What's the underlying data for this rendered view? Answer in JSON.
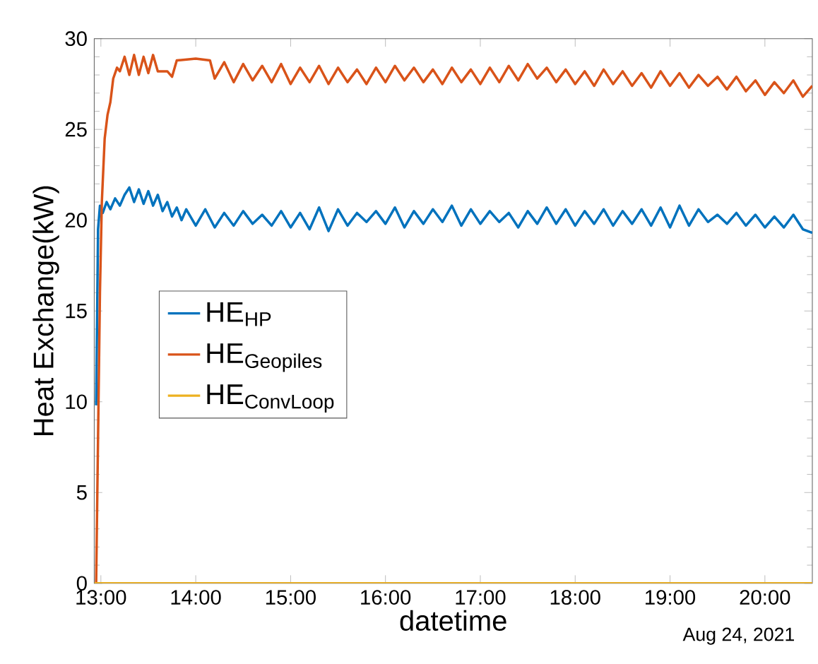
{
  "chart_data": {
    "type": "line",
    "xlabel": "datetime",
    "ylabel": "Heat Exchange(kW)",
    "xlim": [
      12.93,
      20.5
    ],
    "ylim": [
      0,
      30
    ],
    "xticks": [
      {
        "value": 13,
        "label": "13:00"
      },
      {
        "value": 14,
        "label": "14:00"
      },
      {
        "value": 15,
        "label": "15:00"
      },
      {
        "value": 16,
        "label": "16:00"
      },
      {
        "value": 17,
        "label": "17:00"
      },
      {
        "value": 18,
        "label": "18:00"
      },
      {
        "value": 19,
        "label": "19:00"
      },
      {
        "value": 20,
        "label": "20:00"
      }
    ],
    "yticks": [
      0,
      5,
      10,
      15,
      20,
      25,
      30
    ],
    "grid": false,
    "legend": "left",
    "marker": "none",
    "line_style": "solid",
    "annotations": [
      "Aug 24, 2021"
    ],
    "series": [
      {
        "name": "HE$_{HP}$",
        "color": "#0072bd",
        "x": [
          12.95,
          12.97,
          12.99,
          13.02,
          13.06,
          13.1,
          13.15,
          13.2,
          13.25,
          13.3,
          13.35,
          13.4,
          13.45,
          13.5,
          13.55,
          13.6,
          13.65,
          13.7,
          13.75,
          13.8,
          13.85,
          13.9,
          14.0,
          14.1,
          14.2,
          14.3,
          14.4,
          14.5,
          14.6,
          14.7,
          14.8,
          14.9,
          15.0,
          15.1,
          15.2,
          15.3,
          15.4,
          15.5,
          15.6,
          15.7,
          15.8,
          15.9,
          16.0,
          16.1,
          16.2,
          16.3,
          16.4,
          16.5,
          16.6,
          16.7,
          16.8,
          16.9,
          17.0,
          17.1,
          17.2,
          17.3,
          17.4,
          17.5,
          17.6,
          17.7,
          17.8,
          17.9,
          18.0,
          18.1,
          18.2,
          18.3,
          18.4,
          18.5,
          18.6,
          18.7,
          18.8,
          18.9,
          19.0,
          19.1,
          19.2,
          19.3,
          19.4,
          19.5,
          19.6,
          19.7,
          19.8,
          19.9,
          20.0,
          20.1,
          20.2,
          20.3,
          20.4,
          20.5
        ],
        "values": [
          9.8,
          19.5,
          20.8,
          20.4,
          21.0,
          20.6,
          21.2,
          20.8,
          21.4,
          21.8,
          21.0,
          21.7,
          20.9,
          21.6,
          20.8,
          21.4,
          20.5,
          21.0,
          20.2,
          20.7,
          20.0,
          20.6,
          19.7,
          20.6,
          19.6,
          20.4,
          19.7,
          20.5,
          19.8,
          20.3,
          19.7,
          20.5,
          19.6,
          20.4,
          19.5,
          20.7,
          19.4,
          20.6,
          19.7,
          20.4,
          19.9,
          20.5,
          19.8,
          20.7,
          19.6,
          20.5,
          19.8,
          20.6,
          19.9,
          20.8,
          19.7,
          20.6,
          19.8,
          20.5,
          19.9,
          20.4,
          19.6,
          20.5,
          19.8,
          20.7,
          19.8,
          20.6,
          19.7,
          20.5,
          19.8,
          20.6,
          19.7,
          20.5,
          19.8,
          20.6,
          19.7,
          20.7,
          19.6,
          20.8,
          19.7,
          20.6,
          19.9,
          20.3,
          19.8,
          20.4,
          19.7,
          20.3,
          19.6,
          20.2,
          19.6,
          20.3,
          19.5,
          19.3
        ]
      },
      {
        "name": "HE$_{Geopiles}$",
        "color": "#d95319",
        "x": [
          12.95,
          12.97,
          12.99,
          13.01,
          13.04,
          13.07,
          13.1,
          13.13,
          13.17,
          13.2,
          13.25,
          13.3,
          13.35,
          13.4,
          13.45,
          13.5,
          13.55,
          13.6,
          13.7,
          13.75,
          13.8,
          14.0,
          14.15,
          14.2,
          14.3,
          14.4,
          14.5,
          14.6,
          14.7,
          14.8,
          14.9,
          15.0,
          15.1,
          15.2,
          15.3,
          15.4,
          15.5,
          15.6,
          15.7,
          15.8,
          15.9,
          16.0,
          16.1,
          16.2,
          16.3,
          16.4,
          16.5,
          16.6,
          16.7,
          16.8,
          16.9,
          17.0,
          17.1,
          17.2,
          17.3,
          17.4,
          17.5,
          17.6,
          17.7,
          17.8,
          17.9,
          18.0,
          18.1,
          18.2,
          18.3,
          18.4,
          18.5,
          18.6,
          18.7,
          18.8,
          18.9,
          19.0,
          19.1,
          19.2,
          19.3,
          19.4,
          19.5,
          19.6,
          19.7,
          19.8,
          19.9,
          20.0,
          20.1,
          20.2,
          20.3,
          20.4,
          20.5
        ],
        "values": [
          0,
          8,
          16,
          21,
          24.5,
          25.8,
          26.5,
          27.8,
          28.4,
          28.2,
          29.0,
          28.0,
          29.1,
          28.0,
          29.0,
          28.1,
          29.1,
          28.2,
          28.2,
          27.9,
          28.8,
          28.9,
          28.8,
          27.8,
          28.7,
          27.6,
          28.6,
          27.7,
          28.5,
          27.6,
          28.6,
          27.5,
          28.4,
          27.6,
          28.5,
          27.5,
          28.4,
          27.6,
          28.3,
          27.5,
          28.4,
          27.6,
          28.5,
          27.7,
          28.4,
          27.6,
          28.3,
          27.5,
          28.4,
          27.6,
          28.3,
          27.5,
          28.4,
          27.6,
          28.5,
          27.7,
          28.6,
          27.8,
          28.4,
          27.6,
          28.3,
          27.5,
          28.2,
          27.4,
          28.3,
          27.5,
          28.2,
          27.4,
          28.1,
          27.3,
          28.2,
          27.4,
          28.1,
          27.3,
          28.0,
          27.4,
          27.9,
          27.2,
          27.9,
          27.1,
          27.7,
          26.9,
          27.6,
          27.0,
          27.7,
          26.8,
          27.4
        ]
      },
      {
        "name": "HE$_{ConvLoop}$",
        "color": "#edb120",
        "x": [
          12.93,
          20.5
        ],
        "values": [
          0,
          0
        ]
      }
    ]
  }
}
